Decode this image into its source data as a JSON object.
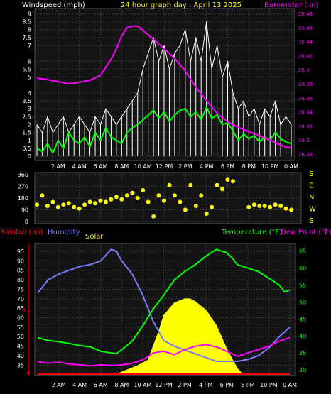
{
  "header": {
    "windspeed_label": "Windspeed (mph)",
    "title": "24 hour graph day : April 13 2025",
    "barometer_label": "Barometer (.in)"
  },
  "labels": {
    "rainfall": "Rainfall (.in)",
    "humidity": "Humidity",
    "solar": "Solar",
    "temperature": "Temperature (°F)",
    "dewpoint": "Dew Point (°F)",
    "compass": [
      "S",
      "E",
      "N",
      "W",
      "S"
    ]
  },
  "colors": {
    "background": "#000000",
    "plot_bg": "#141414",
    "grid": "#3a3a3a",
    "wind_avg": "#00ff00",
    "wind_gust": "#ffffff",
    "barometer": "#ff00ff",
    "direction": "#ffff00",
    "temperature": "#00ff00",
    "dewpoint": "#ff00ff",
    "humidity": "#7a7aff",
    "solar": "#ffff00",
    "rain": "#ff0000",
    "title": "#ffff00",
    "axis_text": "#ffffff"
  },
  "chart_data": [
    {
      "type": "line",
      "name": "wind-barometer",
      "x_ticks": [
        "2 AM",
        "4 AM",
        "6 AM",
        "8 AM",
        "10 AM",
        "12 PM",
        "2 PM",
        "4 PM",
        "6 PM",
        "8 PM",
        "10 PM",
        "0 AM"
      ],
      "y_left_ticks": [
        "0",
        "0.5",
        "1",
        "1.5",
        "2",
        "2.5",
        "3",
        "3.5",
        "4",
        "5",
        "5.5",
        "6",
        "7",
        "7.5",
        "8",
        "8.5",
        "9"
      ],
      "y_right_ticks": [
        "28.28",
        "28.3",
        "28.32",
        "28.34",
        "28.36",
        "28.38",
        "28.4",
        "28.42",
        "28.44",
        "28.46",
        "28.48"
      ],
      "ylim_left": [
        0,
        9.2
      ],
      "ylim_right": [
        28.275,
        28.485
      ],
      "barometer": {
        "x": [
          0,
          1,
          2,
          3,
          4,
          5,
          6,
          7,
          7.5,
          8,
          8.5,
          9,
          9.5,
          10,
          11,
          12,
          13,
          14,
          15,
          16,
          17,
          18,
          19,
          20,
          21,
          22,
          23,
          23.5,
          24
        ],
        "y": [
          28.388,
          28.386,
          28.383,
          28.38,
          28.382,
          28.385,
          28.392,
          28.415,
          28.43,
          28.448,
          28.46,
          28.462,
          28.462,
          28.456,
          28.443,
          28.43,
          28.416,
          28.398,
          28.375,
          28.356,
          28.338,
          28.326,
          28.318,
          28.312,
          28.306,
          28.3,
          28.293,
          28.29,
          28.289
        ]
      },
      "wind_gust": {
        "x": [
          0,
          0.5,
          1,
          1.5,
          2,
          2.5,
          3,
          3.5,
          4,
          4.5,
          5,
          5.5,
          6,
          6.5,
          7,
          7.5,
          8,
          8.5,
          9,
          9.5,
          10,
          10.5,
          11,
          11.5,
          12,
          12.5,
          13,
          13.5,
          14,
          14.5,
          15,
          15.5,
          16,
          16.5,
          17,
          17.5,
          18,
          18.5,
          19,
          19.5,
          20,
          20.5,
          21,
          21.5,
          22,
          22.5,
          23,
          23.5,
          24
        ],
        "y": [
          2,
          1.5,
          2.5,
          1.5,
          2,
          2.5,
          1.5,
          2,
          2.5,
          2,
          1.5,
          2.5,
          2,
          3,
          2.5,
          2,
          2.5,
          3,
          3.5,
          4,
          5.5,
          6.5,
          7.5,
          6,
          7,
          5.5,
          6.5,
          7,
          8,
          6,
          7.5,
          6,
          8.5,
          5.5,
          7,
          5,
          6,
          4,
          3,
          3.5,
          2.5,
          3,
          2,
          3,
          2.5,
          3.5,
          2,
          2.5,
          2
        ]
      },
      "wind_avg": {
        "x": [
          0,
          0.5,
          1,
          1.5,
          2,
          2.5,
          3,
          3.5,
          4,
          4.5,
          5,
          5.5,
          6,
          6.5,
          7,
          7.5,
          8,
          8.5,
          9,
          9.5,
          10,
          10.5,
          11,
          11.5,
          12,
          12.5,
          13,
          13.5,
          14,
          14.5,
          15,
          15.5,
          16,
          16.5,
          17,
          17.5,
          18,
          18.5,
          19,
          19.5,
          20,
          20.5,
          21,
          21.5,
          22,
          22.5,
          23,
          23.5,
          24
        ],
        "y": [
          0.5,
          0.3,
          0.8,
          0.2,
          1,
          0.5,
          1.5,
          1,
          0.8,
          1.2,
          0.6,
          1.5,
          1,
          1.8,
          1.2,
          1,
          0.8,
          1.5,
          1.8,
          2,
          2.3,
          2.6,
          2.9,
          2.4,
          2.8,
          2.2,
          2.6,
          2.9,
          3,
          2.5,
          2.8,
          2.3,
          3.1,
          2.4,
          2.6,
          2,
          2.1,
          1.6,
          1,
          1.4,
          1.1,
          1.3,
          0.9,
          1.2,
          1,
          1.5,
          1.1,
          0.9,
          0.8
        ]
      }
    },
    {
      "type": "scatter",
      "name": "wind-direction",
      "x_ticks": [
        "2 AM",
        "4 AM",
        "6 AM",
        "8 AM",
        "10 AM",
        "12 PM",
        "2 PM",
        "4 PM",
        "6 PM",
        "8 PM",
        "10 PM",
        "0 AM"
      ],
      "y_ticks": [
        "0",
        "90",
        "180",
        "270",
        "360"
      ],
      "ylim": [
        0,
        360
      ],
      "x": [
        0,
        0.5,
        1,
        1.5,
        2,
        2.5,
        3,
        3.5,
        4,
        4.5,
        5,
        5.5,
        6,
        6.5,
        7,
        7.5,
        8,
        8.5,
        9,
        9.5,
        10,
        10.5,
        11,
        11.5,
        12,
        12.5,
        13,
        13.5,
        14,
        14.5,
        15,
        15.5,
        16,
        16.5,
        17,
        17.5,
        18,
        18.5,
        20,
        20.5,
        21,
        21.5,
        22,
        22.5,
        23,
        23.5,
        24
      ],
      "y": [
        130,
        200,
        120,
        150,
        110,
        130,
        140,
        110,
        100,
        130,
        150,
        140,
        160,
        150,
        170,
        190,
        170,
        200,
        220,
        180,
        240,
        150,
        40,
        200,
        160,
        280,
        200,
        150,
        90,
        280,
        120,
        200,
        60,
        110,
        280,
        250,
        320,
        310,
        110,
        130,
        120,
        120,
        110,
        130,
        120,
        100,
        90
      ]
    },
    {
      "type": "line",
      "name": "temperature-humidity-solar",
      "x_ticks": [
        "2 AM",
        "4 AM",
        "6 AM",
        "8 AM",
        "10 AM",
        "12 PM",
        "2 PM",
        "4 PM",
        "6 PM",
        "8 PM",
        "10 PM",
        "0 AM"
      ],
      "y_humidity_ticks": [
        "35",
        "40",
        "45",
        "50",
        "55",
        "60",
        "65",
        "70",
        "75",
        "80",
        "85",
        "90",
        "95"
      ],
      "y_temp_ticks": [
        "30",
        "35",
        "40",
        "45",
        "50",
        "55",
        "60",
        "65"
      ],
      "rain_ticks": [
        "0",
        "0.1"
      ],
      "ylim_humidity": [
        31,
        98
      ],
      "ylim_temp": [
        29.2,
        66.6
      ],
      "temperature": {
        "x": [
          0,
          1,
          2,
          3,
          4,
          5,
          6,
          7,
          7.5,
          8,
          9,
          10,
          11,
          12,
          13,
          14,
          15,
          16,
          17,
          18,
          18.5,
          19,
          20,
          21,
          22,
          23,
          23.5,
          24
        ],
        "y": [
          39.5,
          38.7,
          38.3,
          37.8,
          37.2,
          36.8,
          35.5,
          35,
          34.8,
          36,
          38.5,
          43,
          48,
          52,
          56.5,
          59,
          61,
          63.5,
          65.5,
          64.5,
          63,
          61,
          60,
          59,
          57,
          55,
          53,
          53.5
        ]
      },
      "dewpoint": {
        "x": [
          0,
          1,
          2,
          3,
          4,
          5,
          6,
          7,
          8,
          9,
          10,
          11,
          12,
          13,
          14,
          15,
          16,
          17,
          18,
          19,
          20,
          21,
          22,
          23,
          24
        ],
        "y": [
          32.5,
          32,
          32.3,
          31.8,
          31.5,
          31.2,
          31.5,
          31.3,
          31.5,
          32,
          33,
          35,
          35.5,
          34.5,
          36,
          37,
          37.5,
          36.8,
          35.5,
          34,
          35,
          36,
          37,
          38.5,
          39.5
        ]
      },
      "humidity": {
        "x": [
          0,
          1,
          2,
          3,
          4,
          5,
          6,
          7,
          7.5,
          8,
          9,
          10,
          11,
          12,
          13,
          14,
          15,
          16,
          17,
          18,
          19,
          20,
          21,
          22,
          23,
          24
        ],
        "y": [
          73,
          80,
          83,
          85,
          87,
          88,
          90,
          96,
          95,
          90,
          83,
          72,
          58,
          48,
          45,
          43,
          41,
          39,
          37,
          37,
          37,
          38,
          40,
          44,
          50,
          55
        ]
      },
      "solar": {
        "x": [
          7.5,
          8.5,
          9.5,
          10.5,
          11,
          11.5,
          12,
          13,
          14,
          14.5,
          15,
          16,
          17,
          18,
          19,
          19.5
        ],
        "y": [
          0,
          3,
          6,
          10,
          20,
          30,
          42,
          51,
          54,
          54,
          52,
          46,
          35,
          18,
          4,
          0
        ]
      },
      "rain": {
        "x": [
          0,
          24
        ],
        "y": [
          0,
          0
        ]
      }
    }
  ]
}
